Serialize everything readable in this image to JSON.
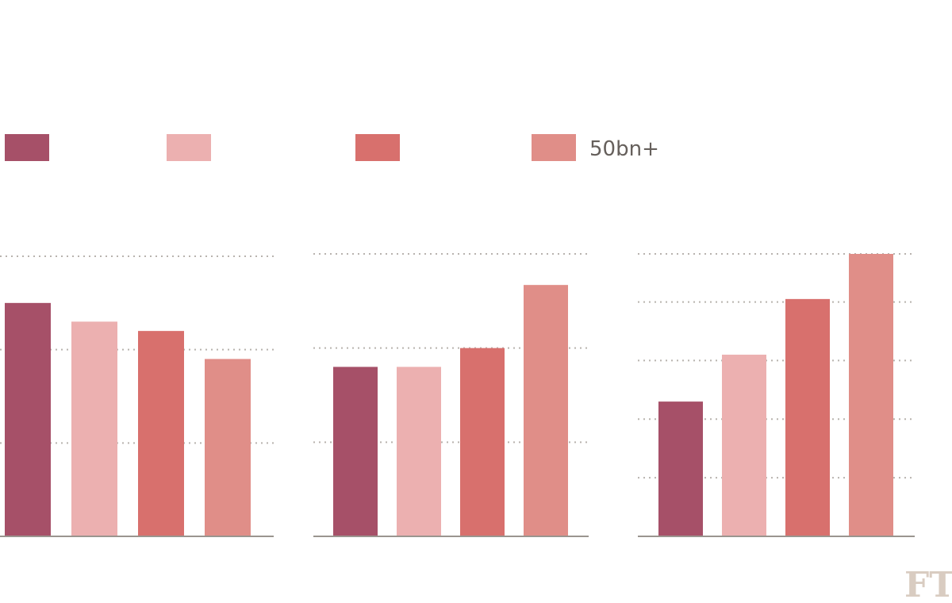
{
  "chart_data": {
    "type": "bar",
    "legend_placement": "top",
    "grid": true,
    "series": [
      {
        "name": "",
        "color": "#a65068"
      },
      {
        "name": "",
        "color": "#ecb0b0"
      },
      {
        "name": "",
        "color": "#d8706d"
      },
      {
        "name": "50bn+",
        "color": "#e08e88"
      }
    ],
    "panels": [
      {
        "values": [
          2.5,
          2.3,
          2.2,
          1.9
        ],
        "ylim": [
          0,
          3
        ],
        "gridlines": [
          1,
          2,
          3
        ]
      },
      {
        "values": [
          1.8,
          1.8,
          2.0,
          2.67
        ],
        "ylim": [
          0,
          3
        ],
        "gridlines": [
          1,
          2,
          3
        ]
      },
      {
        "values": [
          2.3,
          3.1,
          4.05,
          4.82
        ],
        "ylim": [
          0,
          4.82
        ],
        "gridlines": [
          1,
          2,
          3,
          4,
          4.82
        ]
      }
    ]
  },
  "logo": {
    "text": "FT"
  }
}
